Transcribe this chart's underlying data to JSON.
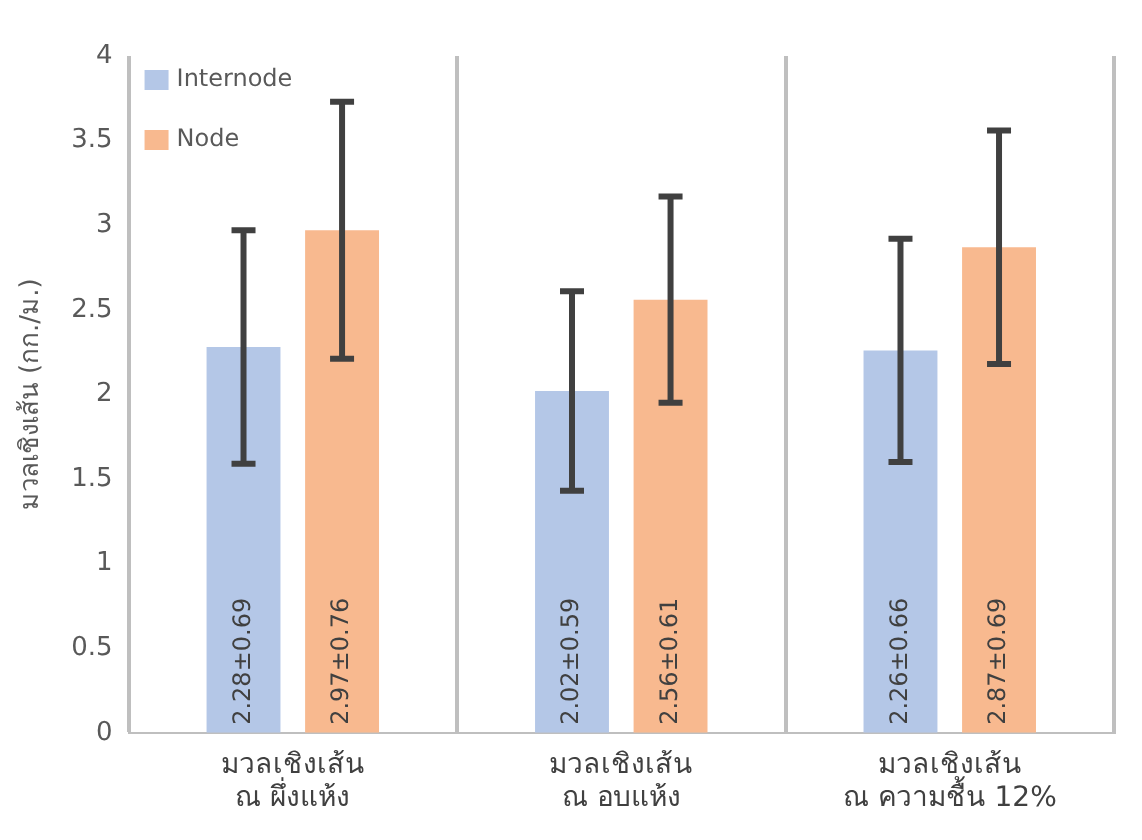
{
  "chart_data": {
    "type": "bar",
    "ylabel": "มวลเชิงเส้น (กก./ม.)",
    "categories": [
      "มวลเชิงเส้น\nณ ผึ่งแห้ง",
      "มวลเชิงเส้น\nณ อบแห้ง",
      "มวลเชิงเส้น\nณ ความชื้น 12%"
    ],
    "series": [
      {
        "name": "Internode",
        "color": "#b4c7e7",
        "values": [
          2.28,
          2.02,
          2.26
        ],
        "errors": [
          0.69,
          0.59,
          0.66
        ],
        "value_labels": [
          "2.28±0.69",
          "2.02±0.59",
          "2.26±0.66"
        ]
      },
      {
        "name": "Node",
        "color": "#f8b98f",
        "values": [
          2.97,
          2.56,
          2.87
        ],
        "errors": [
          0.76,
          0.61,
          0.69
        ],
        "value_labels": [
          "2.97±0.76",
          "2.56±0.61",
          "2.87±0.69"
        ]
      }
    ],
    "ylim": [
      0,
      4
    ],
    "yticks": [
      0,
      0.5,
      1,
      1.5,
      2,
      2.5,
      3,
      3.5,
      4
    ],
    "grid": "x",
    "legend": "top left"
  }
}
